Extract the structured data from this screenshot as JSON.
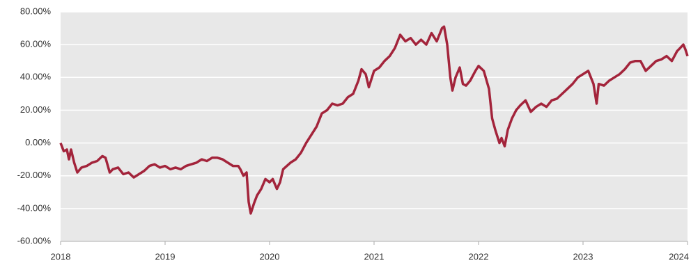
{
  "chart_data": {
    "type": "line",
    "x": [
      2018.0,
      2018.03,
      2018.06,
      2018.08,
      2018.1,
      2018.13,
      2018.16,
      2018.2,
      2018.25,
      2018.3,
      2018.35,
      2018.4,
      2018.43,
      2018.47,
      2018.5,
      2018.55,
      2018.6,
      2018.65,
      2018.7,
      2018.75,
      2018.8,
      2018.85,
      2018.9,
      2018.95,
      2019.0,
      2019.05,
      2019.1,
      2019.15,
      2019.2,
      2019.25,
      2019.3,
      2019.35,
      2019.4,
      2019.45,
      2019.5,
      2019.55,
      2019.6,
      2019.65,
      2019.7,
      2019.72,
      2019.75,
      2019.78,
      2019.8,
      2019.82,
      2019.85,
      2019.88,
      2019.92,
      2019.96,
      2020.0,
      2020.03,
      2020.07,
      2020.1,
      2020.13,
      2020.2,
      2020.25,
      2020.3,
      2020.35,
      2020.4,
      2020.45,
      2020.5,
      2020.55,
      2020.6,
      2020.65,
      2020.7,
      2020.75,
      2020.8,
      2020.85,
      2020.88,
      2020.92,
      2020.95,
      2021.0,
      2021.05,
      2021.1,
      2021.15,
      2021.2,
      2021.25,
      2021.3,
      2021.35,
      2021.4,
      2021.45,
      2021.5,
      2021.55,
      2021.6,
      2021.65,
      2021.67,
      2021.7,
      2021.73,
      2021.75,
      2021.78,
      2021.82,
      2021.85,
      2021.88,
      2021.92,
      2021.97,
      2022.0,
      2022.05,
      2022.1,
      2022.13,
      2022.16,
      2022.2,
      2022.22,
      2022.25,
      2022.28,
      2022.32,
      2022.36,
      2022.4,
      2022.45,
      2022.5,
      2022.55,
      2022.6,
      2022.65,
      2022.7,
      2022.75,
      2022.8,
      2022.85,
      2022.9,
      2022.95,
      2023.0,
      2023.05,
      2023.1,
      2023.13,
      2023.15,
      2023.2,
      2023.25,
      2023.3,
      2023.35,
      2023.4,
      2023.45,
      2023.5,
      2023.55,
      2023.6,
      2023.65,
      2023.7,
      2023.75,
      2023.8,
      2023.85,
      2023.9,
      2023.93,
      2023.96,
      2023.98,
      2024.0
    ],
    "series": [
      {
        "color": "#a3243b",
        "values": [
          0,
          -5,
          -4,
          -10,
          -4,
          -12,
          -18,
          -15,
          -14,
          -12,
          -11,
          -8,
          -9,
          -18,
          -16,
          -15,
          -19,
          -18,
          -21,
          -19,
          -17,
          -14,
          -13,
          -15,
          -14,
          -16,
          -15,
          -16,
          -14,
          -13,
          -12,
          -10,
          -11,
          -9,
          -9,
          -10,
          -12,
          -14,
          -14,
          -16,
          -20,
          -18,
          -36,
          -43,
          -37,
          -32,
          -28,
          -22,
          -24,
          -22,
          -28,
          -24,
          -16,
          -12,
          -10,
          -6,
          0,
          5,
          10,
          18,
          20,
          24,
          23,
          24,
          28,
          30,
          38,
          45,
          42,
          34,
          44,
          46,
          50,
          53,
          58,
          66,
          62,
          64,
          60,
          63,
          60,
          67,
          62,
          70,
          71,
          60,
          40,
          32,
          40,
          46,
          36,
          35,
          38,
          44,
          47,
          44,
          33,
          15,
          8,
          0,
          3,
          -2,
          8,
          15,
          20,
          23,
          26,
          19,
          22,
          24,
          22,
          26,
          27,
          30,
          33,
          36,
          40,
          42,
          44,
          36,
          24,
          36,
          35,
          38,
          40,
          42,
          45,
          49,
          50,
          50,
          44,
          47,
          50,
          51,
          53,
          50,
          56,
          58,
          60,
          57,
          53
        ]
      }
    ],
    "xlim": [
      2018,
      2024
    ],
    "xticks": [
      2018,
      2019,
      2020,
      2021,
      2022,
      2023,
      2024
    ],
    "ylim": [
      -60,
      80
    ],
    "yticks": [
      {
        "value": -60,
        "label": "-60.00%"
      },
      {
        "value": -40,
        "label": "-40.00%"
      },
      {
        "value": -20,
        "label": "-20.00%"
      },
      {
        "value": 0,
        "label": "0.00%"
      },
      {
        "value": 20,
        "label": "20.00%"
      },
      {
        "value": 40,
        "label": "40.00%"
      },
      {
        "value": 60,
        "label": "60.00%"
      },
      {
        "value": 80,
        "label": "80.00%"
      }
    ],
    "grid": true
  }
}
